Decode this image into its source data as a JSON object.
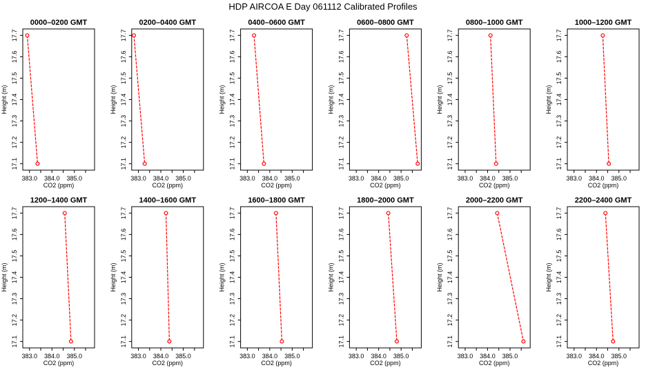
{
  "figure": {
    "title": "HDP  AIRCOA E  Day 061112  Calibrated Profiles"
  },
  "colors": {
    "series": "#ff0000",
    "axes": "#000000",
    "background": "#ffffff"
  },
  "chart_data": [
    {
      "type": "line",
      "title": "0000–0200 GMT",
      "xlabel": "CO2 (ppm)",
      "ylabel": "Height (m)",
      "xlim": [
        382.7,
        385.9
      ],
      "ylim": [
        17.07,
        17.73
      ],
      "xticks": [
        383.0,
        384.0,
        385.0
      ],
      "xtick_labels": [
        "383.0",
        "384.0",
        "385.0"
      ],
      "yticks": [
        17.1,
        17.2,
        17.3,
        17.4,
        17.5,
        17.6,
        17.7
      ],
      "ytick_labels": [
        "17.1",
        "17.2",
        "17.3",
        "17.4",
        "17.5",
        "17.6",
        "17.7"
      ],
      "series": [
        {
          "x": [
            382.9,
            383.36
          ],
          "y": [
            17.7,
            17.1
          ]
        }
      ]
    },
    {
      "type": "line",
      "title": "0200–0400 GMT",
      "xlabel": "CO2 (ppm)",
      "ylabel": "Height (m)",
      "xlim": [
        382.7,
        385.9
      ],
      "ylim": [
        17.07,
        17.73
      ],
      "xticks": [
        383.0,
        384.0,
        385.0
      ],
      "xtick_labels": [
        "383.0",
        "384.0",
        "385.0"
      ],
      "yticks": [
        17.1,
        17.2,
        17.3,
        17.4,
        17.5,
        17.6,
        17.7
      ],
      "ytick_labels": [
        "17.1",
        "17.2",
        "17.3",
        "17.4",
        "17.5",
        "17.6",
        "17.7"
      ],
      "series": [
        {
          "x": [
            382.8,
            383.28
          ],
          "y": [
            17.7,
            17.1
          ]
        }
      ]
    },
    {
      "type": "line",
      "title": "0400–0600 GMT",
      "xlabel": "CO2 (ppm)",
      "ylabel": "Height (m)",
      "xlim": [
        382.7,
        385.9
      ],
      "ylim": [
        17.07,
        17.73
      ],
      "xticks": [
        383.0,
        384.0,
        385.0
      ],
      "xtick_labels": [
        "383.0",
        "384.0",
        "385.0"
      ],
      "yticks": [
        17.1,
        17.2,
        17.3,
        17.4,
        17.5,
        17.6,
        17.7
      ],
      "ytick_labels": [
        "17.1",
        "17.2",
        "17.3",
        "17.4",
        "17.5",
        "17.6",
        "17.7"
      ],
      "series": [
        {
          "x": [
            383.3,
            383.74
          ],
          "y": [
            17.7,
            17.1
          ]
        }
      ]
    },
    {
      "type": "line",
      "title": "0600–0800 GMT",
      "xlabel": "CO2 (ppm)",
      "ylabel": "Height (m)",
      "xlim": [
        382.7,
        385.9
      ],
      "ylim": [
        17.07,
        17.73
      ],
      "xticks": [
        383.0,
        384.0,
        385.0
      ],
      "xtick_labels": [
        "383.0",
        "384.0",
        "385.0"
      ],
      "yticks": [
        17.1,
        17.2,
        17.3,
        17.4,
        17.5,
        17.6,
        17.7
      ],
      "ytick_labels": [
        "17.1",
        "17.2",
        "17.3",
        "17.4",
        "17.5",
        "17.6",
        "17.7"
      ],
      "series": [
        {
          "x": [
            385.25,
            385.74
          ],
          "y": [
            17.7,
            17.1
          ]
        }
      ]
    },
    {
      "type": "line",
      "title": "0800–1000 GMT",
      "xlabel": "CO2 (ppm)",
      "ylabel": "Height (m)",
      "xlim": [
        382.7,
        385.9
      ],
      "ylim": [
        17.07,
        17.73
      ],
      "xticks": [
        383.0,
        384.0,
        385.0
      ],
      "xtick_labels": [
        "383.0",
        "384.0",
        "385.0"
      ],
      "yticks": [
        17.1,
        17.2,
        17.3,
        17.4,
        17.5,
        17.6,
        17.7
      ],
      "ytick_labels": [
        "17.1",
        "17.2",
        "17.3",
        "17.4",
        "17.5",
        "17.6",
        "17.7"
      ],
      "series": [
        {
          "x": [
            384.13,
            384.38
          ],
          "y": [
            17.7,
            17.1
          ]
        }
      ]
    },
    {
      "type": "line",
      "title": "1000–1200 GMT",
      "xlabel": "CO2 (ppm)",
      "ylabel": "Height (m)",
      "xlim": [
        382.7,
        385.9
      ],
      "ylim": [
        17.07,
        17.73
      ],
      "xticks": [
        383.0,
        384.0,
        385.0
      ],
      "xtick_labels": [
        "383.0",
        "384.0",
        "385.0"
      ],
      "yticks": [
        17.1,
        17.2,
        17.3,
        17.4,
        17.5,
        17.6,
        17.7
      ],
      "ytick_labels": [
        "17.1",
        "17.2",
        "17.3",
        "17.4",
        "17.5",
        "17.6",
        "17.7"
      ],
      "series": [
        {
          "x": [
            384.28,
            384.55
          ],
          "y": [
            17.7,
            17.1
          ]
        }
      ]
    },
    {
      "type": "line",
      "title": "1200–1400 GMT",
      "xlabel": "CO2 (ppm)",
      "ylabel": "Height (m)",
      "xlim": [
        382.7,
        385.9
      ],
      "ylim": [
        17.07,
        17.73
      ],
      "xticks": [
        383.0,
        384.0,
        385.0
      ],
      "xtick_labels": [
        "383.0",
        "384.0",
        "385.0"
      ],
      "yticks": [
        17.1,
        17.2,
        17.3,
        17.4,
        17.5,
        17.6,
        17.7
      ],
      "ytick_labels": [
        "17.1",
        "17.2",
        "17.3",
        "17.4",
        "17.5",
        "17.6",
        "17.7"
      ],
      "series": [
        {
          "x": [
            384.57,
            384.85
          ],
          "y": [
            17.7,
            17.1
          ]
        }
      ]
    },
    {
      "type": "line",
      "title": "1400–1600 GMT",
      "xlabel": "CO2 (ppm)",
      "ylabel": "Height (m)",
      "xlim": [
        382.7,
        385.9
      ],
      "ylim": [
        17.07,
        17.73
      ],
      "xticks": [
        383.0,
        384.0,
        385.0
      ],
      "xtick_labels": [
        "383.0",
        "384.0",
        "385.0"
      ],
      "yticks": [
        17.1,
        17.2,
        17.3,
        17.4,
        17.5,
        17.6,
        17.7
      ],
      "ytick_labels": [
        "17.1",
        "17.2",
        "17.3",
        "17.4",
        "17.5",
        "17.6",
        "17.7"
      ],
      "series": [
        {
          "x": [
            384.23,
            384.38
          ],
          "y": [
            17.7,
            17.1
          ]
        }
      ]
    },
    {
      "type": "line",
      "title": "1600–1800 GMT",
      "xlabel": "CO2 (ppm)",
      "ylabel": "Height (m)",
      "xlim": [
        382.7,
        385.9
      ],
      "ylim": [
        17.07,
        17.73
      ],
      "xticks": [
        383.0,
        384.0,
        385.0
      ],
      "xtick_labels": [
        "383.0",
        "384.0",
        "385.0"
      ],
      "yticks": [
        17.1,
        17.2,
        17.3,
        17.4,
        17.5,
        17.6,
        17.7
      ],
      "ytick_labels": [
        "17.1",
        "17.2",
        "17.3",
        "17.4",
        "17.5",
        "17.6",
        "17.7"
      ],
      "series": [
        {
          "x": [
            384.28,
            384.54
          ],
          "y": [
            17.7,
            17.1
          ]
        }
      ]
    },
    {
      "type": "line",
      "title": "1800–2000 GMT",
      "xlabel": "CO2 (ppm)",
      "ylabel": "Height (m)",
      "xlim": [
        382.7,
        385.9
      ],
      "ylim": [
        17.07,
        17.73
      ],
      "xticks": [
        383.0,
        384.0,
        385.0
      ],
      "xtick_labels": [
        "383.0",
        "384.0",
        "385.0"
      ],
      "yticks": [
        17.1,
        17.2,
        17.3,
        17.4,
        17.5,
        17.6,
        17.7
      ],
      "ytick_labels": [
        "17.1",
        "17.2",
        "17.3",
        "17.4",
        "17.5",
        "17.6",
        "17.7"
      ],
      "series": [
        {
          "x": [
            384.43,
            384.81
          ],
          "y": [
            17.7,
            17.1
          ]
        }
      ]
    },
    {
      "type": "line",
      "title": "2000–2200 GMT",
      "xlabel": "CO2 (ppm)",
      "ylabel": "Height (m)",
      "xlim": [
        382.7,
        385.9
      ],
      "ylim": [
        17.07,
        17.73
      ],
      "xticks": [
        383.0,
        384.0,
        385.0
      ],
      "xtick_labels": [
        "383.0",
        "384.0",
        "385.0"
      ],
      "yticks": [
        17.1,
        17.2,
        17.3,
        17.4,
        17.5,
        17.6,
        17.7
      ],
      "ytick_labels": [
        "17.1",
        "17.2",
        "17.3",
        "17.4",
        "17.5",
        "17.6",
        "17.7"
      ],
      "series": [
        {
          "x": [
            384.43,
            385.6
          ],
          "y": [
            17.7,
            17.1
          ]
        }
      ]
    },
    {
      "type": "line",
      "title": "2200–2400 GMT",
      "xlabel": "CO2 (ppm)",
      "ylabel": "Height (m)",
      "xlim": [
        382.7,
        385.9
      ],
      "ylim": [
        17.07,
        17.73
      ],
      "xticks": [
        383.0,
        384.0,
        385.0
      ],
      "xtick_labels": [
        "383.0",
        "384.0",
        "385.0"
      ],
      "yticks": [
        17.1,
        17.2,
        17.3,
        17.4,
        17.5,
        17.6,
        17.7
      ],
      "ytick_labels": [
        "17.1",
        "17.2",
        "17.3",
        "17.4",
        "17.5",
        "17.6",
        "17.7"
      ],
      "series": [
        {
          "x": [
            384.4,
            384.74
          ],
          "y": [
            17.7,
            17.1
          ]
        }
      ]
    }
  ]
}
